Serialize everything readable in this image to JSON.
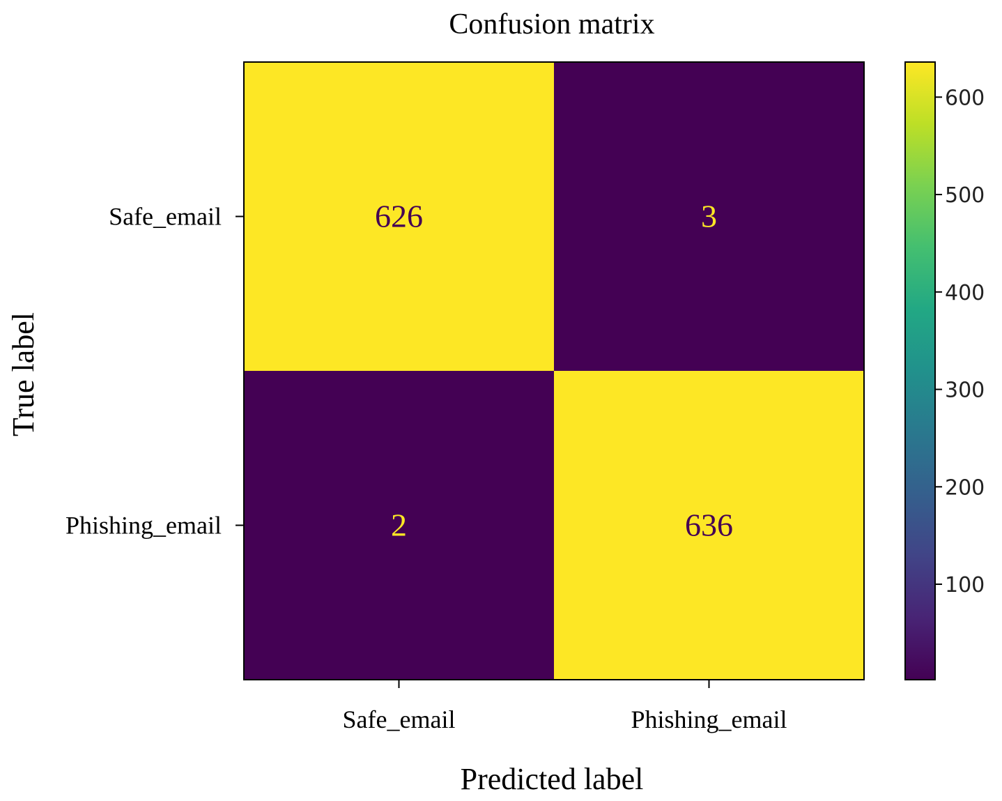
{
  "chart_data": {
    "type": "heatmap",
    "title": "Confusion matrix",
    "xlabel": "Predicted label",
    "ylabel": "True label",
    "x_categories": [
      "Safe_email",
      "Phishing_email"
    ],
    "y_categories": [
      "Safe_email",
      "Phishing_email"
    ],
    "values": [
      [
        626,
        3
      ],
      [
        2,
        636
      ]
    ],
    "colormap": "viridis",
    "colorbar": {
      "range": [
        2,
        636
      ],
      "ticks": [
        100,
        200,
        300,
        400,
        500,
        600
      ]
    },
    "grid": false,
    "colors": {
      "low": "#440154",
      "high": "#fde725",
      "text_on_low": "#fde725",
      "text_on_high": "#440154"
    }
  }
}
